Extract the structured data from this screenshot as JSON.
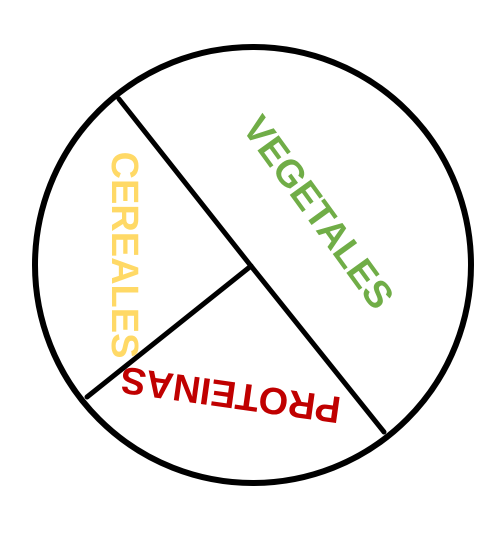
{
  "plate": {
    "sections": [
      {
        "id": "vegetales",
        "label": "VEGETALES",
        "color": "#70AD47"
      },
      {
        "id": "cereales",
        "label": "CEREALES",
        "color": "#FFD966"
      },
      {
        "id": "proteinas",
        "label": "PROTEINAS",
        "color": "#C00000"
      }
    ],
    "outline_color": "#000000"
  }
}
